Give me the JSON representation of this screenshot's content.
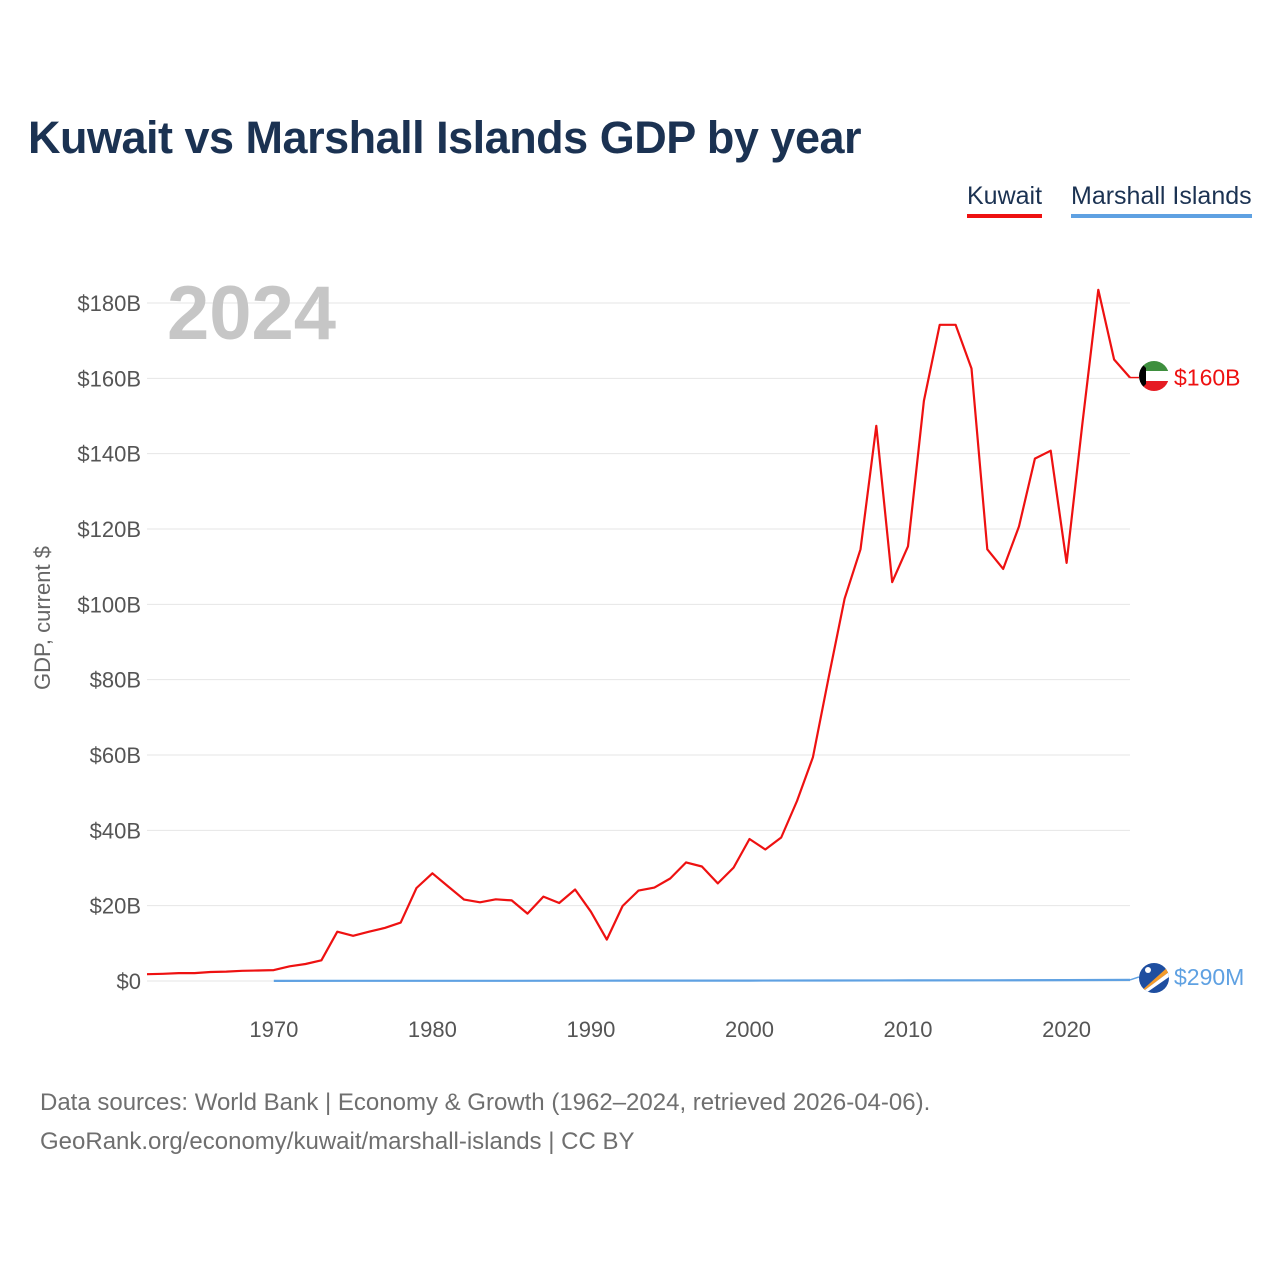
{
  "title": "Kuwait vs Marshall Islands GDP by year",
  "year_label": "2024",
  "legend": [
    {
      "name": "Kuwait",
      "color": "#ee1111"
    },
    {
      "name": "Marshall Islands",
      "color": "#5fa1e2"
    }
  ],
  "footer": {
    "line1": "Data sources: World Bank | Economy & Growth (1962–2024, retrieved 2026-04-06).",
    "line2": "GeoRank.org/economy/kuwait/marshall-islands | CC BY"
  },
  "chart_data": {
    "type": "line",
    "title": "Kuwait vs Marshall Islands GDP by year",
    "xlabel": "",
    "ylabel": "GDP, current $",
    "xlim": [
      1962,
      2024
    ],
    "ylim": [
      0,
      180
    ],
    "y_unit": "billions of current US$",
    "y_ticks": [
      0,
      20,
      40,
      60,
      80,
      100,
      120,
      140,
      160,
      180
    ],
    "y_tick_labels": [
      "$0",
      "$20B",
      "$40B",
      "$60B",
      "$80B",
      "$100B",
      "$120B",
      "$140B",
      "$160B",
      "$180B"
    ],
    "x_ticks": [
      1970,
      1980,
      1990,
      2000,
      2010,
      2020
    ],
    "x_tick_labels": [
      "1970",
      "1980",
      "1990",
      "2000",
      "2010",
      "2020"
    ],
    "grid": true,
    "legend_position": "top-right",
    "series": [
      {
        "name": "Kuwait",
        "color": "#ee1111",
        "end_label": "$160B",
        "x": [
          1962,
          1963,
          1964,
          1965,
          1966,
          1967,
          1968,
          1969,
          1970,
          1971,
          1972,
          1973,
          1974,
          1975,
          1976,
          1977,
          1978,
          1979,
          1980,
          1981,
          1982,
          1983,
          1984,
          1985,
          1986,
          1987,
          1988,
          1989,
          1990,
          1991,
          1992,
          1993,
          1994,
          1995,
          1996,
          1997,
          1998,
          1999,
          2000,
          2001,
          2002,
          2003,
          2004,
          2005,
          2006,
          2007,
          2008,
          2009,
          2010,
          2011,
          2012,
          2013,
          2014,
          2015,
          2016,
          2017,
          2018,
          2019,
          2020,
          2021,
          2022,
          2023,
          2024
        ],
        "values": [
          1.8,
          1.9,
          2.1,
          2.1,
          2.4,
          2.5,
          2.7,
          2.8,
          2.9,
          3.9,
          4.5,
          5.5,
          13.1,
          12.0,
          13.1,
          14.1,
          15.5,
          24.7,
          28.6,
          25.1,
          21.6,
          20.9,
          21.7,
          21.4,
          17.9,
          22.4,
          20.7,
          24.3,
          18.4,
          11.0,
          19.9,
          24.0,
          24.8,
          27.2,
          31.5,
          30.4,
          25.9,
          30.1,
          37.7,
          34.9,
          38.1,
          47.8,
          59.4,
          80.8,
          101.5,
          114.6,
          147.4,
          105.9,
          115.4,
          154.0,
          174.2,
          174.2,
          162.6,
          114.6,
          109.4,
          120.7,
          138.7,
          140.8,
          111.0,
          148.0,
          183.5,
          165.0,
          160.2
        ]
      },
      {
        "name": "Marshall Islands",
        "color": "#5fa1e2",
        "end_label": "$290M",
        "x": [
          1970,
          1975,
          1980,
          1985,
          1990,
          1995,
          2000,
          2005,
          2010,
          2015,
          2020,
          2024
        ],
        "values": [
          0.03,
          0.04,
          0.05,
          0.06,
          0.07,
          0.1,
          0.11,
          0.13,
          0.16,
          0.18,
          0.24,
          0.29
        ]
      }
    ]
  }
}
